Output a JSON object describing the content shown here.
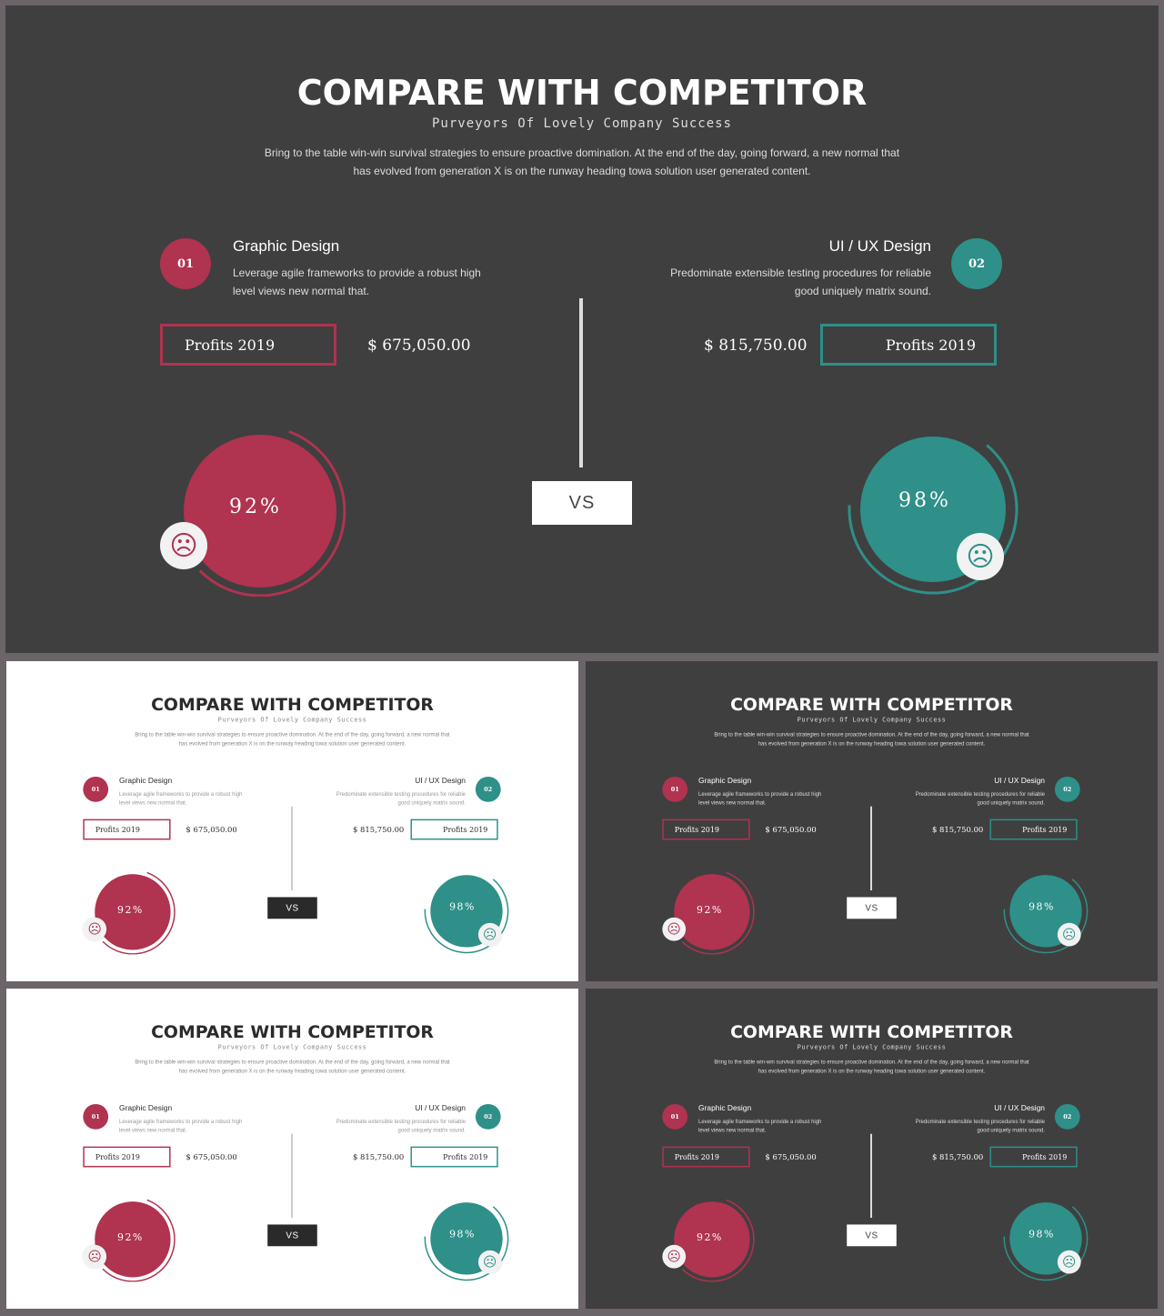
{
  "title": "COMPARE WITH COMPETITOR",
  "subtitle": "Purveyors Of Lovely Company Success",
  "description": "Bring to the table win-win survival strategies to ensure proactive domination. At the end of the day, going forward, a new normal that has evolved from generation X is on the runway heading towa solution user generated content.",
  "left": {
    "number": "01",
    "title": "Graphic Design",
    "description": "Leverage agile frameworks to provide a robust high level views new normal that.",
    "profit_label": "Profits 2019",
    "amount": "$ 675,050.00",
    "percent_label": "92%",
    "percent": 92,
    "face_icon": "☹",
    "color": "#b03350"
  },
  "right": {
    "number": "02",
    "title": "UI / UX Design",
    "description": "Predominate extensible testing procedures for reliable good uniquely matrix sound.",
    "profit_label": "Profits 2019",
    "amount": "$ 815,750.00",
    "percent_label": "98%",
    "percent": 98,
    "face_icon": "☹",
    "color": "#2e9089"
  },
  "vs_label": "VS",
  "colors": {
    "dark_bg": "#3f3f3f",
    "light_bg": "#ffffff",
    "frame": "#6b6468"
  }
}
